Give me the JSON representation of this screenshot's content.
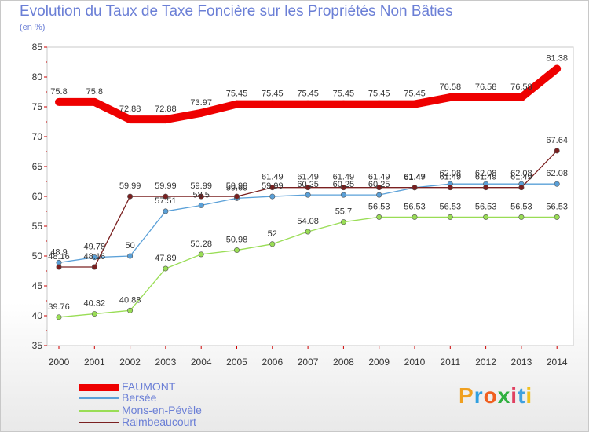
{
  "header": {
    "title": "Evolution du Taux de Taxe Foncière sur les Propriétés Non Bâties",
    "subtitle": "(en %)"
  },
  "brand": {
    "letters": [
      "P",
      "r",
      "o",
      "x",
      "i",
      "t",
      "i"
    ],
    "colors": [
      "#f0a020",
      "#30a0e0",
      "#f06020",
      "#30b040",
      "#e04060",
      "#40a0e0",
      "#f0c020"
    ]
  },
  "chart_data": {
    "type": "line",
    "title": "Evolution du Taux de Taxe Foncière sur les Propriétés Non Bâties",
    "ylabel": "(en %)",
    "xlabel": "",
    "ylim": [
      35,
      85
    ],
    "yticks": [
      35,
      40,
      45,
      50,
      55,
      60,
      65,
      70,
      75,
      80,
      85
    ],
    "categories": [
      "2000",
      "2001",
      "2002",
      "2003",
      "2004",
      "2005",
      "2006",
      "2007",
      "2008",
      "2009",
      "2010",
      "2011",
      "2012",
      "2013",
      "2014"
    ],
    "series": [
      {
        "name": "FAUMONT",
        "color": "#ee0000",
        "values": [
          75.8,
          75.8,
          72.88,
          72.88,
          73.97,
          75.45,
          75.45,
          75.45,
          75.45,
          75.45,
          75.45,
          76.58,
          76.58,
          76.58,
          81.38
        ],
        "labels": [
          "75.8",
          "75.8",
          "72.88",
          "72.88",
          "73.97",
          "75.45",
          "75.45",
          "75.45",
          "75.45",
          "75.45",
          "75.45",
          "76.58",
          "76.58",
          "76.58",
          "81.38"
        ]
      },
      {
        "name": "Bersée",
        "color": "#5aa0d8",
        "values": [
          48.9,
          49.78,
          50,
          57.51,
          58.5,
          59.69,
          59.99,
          60.25,
          60.25,
          60.25,
          61.47,
          62.08,
          62.08,
          62.08,
          62.08
        ],
        "labels": [
          "48.9",
          "49.78",
          "50",
          "57.51",
          "58.5",
          "59.69",
          "59.99",
          "60.25",
          "60.25",
          "60.25",
          "61.47",
          "62.08",
          "62.08",
          "62.08",
          "62.08"
        ]
      },
      {
        "name": "Mons-en-Pévèle",
        "color": "#99dd55",
        "values": [
          39.76,
          40.32,
          40.88,
          47.89,
          50.28,
          50.98,
          52,
          54.08,
          55.7,
          56.53,
          56.53,
          56.53,
          56.53,
          56.53,
          56.53
        ],
        "labels": [
          "39.76",
          "40.32",
          "40.88",
          "47.89",
          "50.28",
          "50.98",
          "52",
          "54.08",
          "55.7",
          "56.53",
          "56.53",
          "56.53",
          "56.53",
          "56.53",
          "56.53"
        ]
      },
      {
        "name": "Raimbeaucourt",
        "color": "#7a2020",
        "values": [
          48.16,
          48.16,
          59.99,
          59.99,
          59.99,
          59.99,
          61.49,
          61.49,
          61.49,
          61.49,
          61.49,
          61.49,
          61.49,
          61.49,
          67.64
        ],
        "labels": [
          "48.16",
          "48.16",
          "59.99",
          "59.99",
          "59.99",
          "59.99",
          "61.49",
          "61.49",
          "61.49",
          "61.49",
          "61.49",
          "61.49",
          "61.49",
          "61.49",
          "67.64"
        ]
      }
    ],
    "legend_position": "bottom-left",
    "grid": false
  }
}
